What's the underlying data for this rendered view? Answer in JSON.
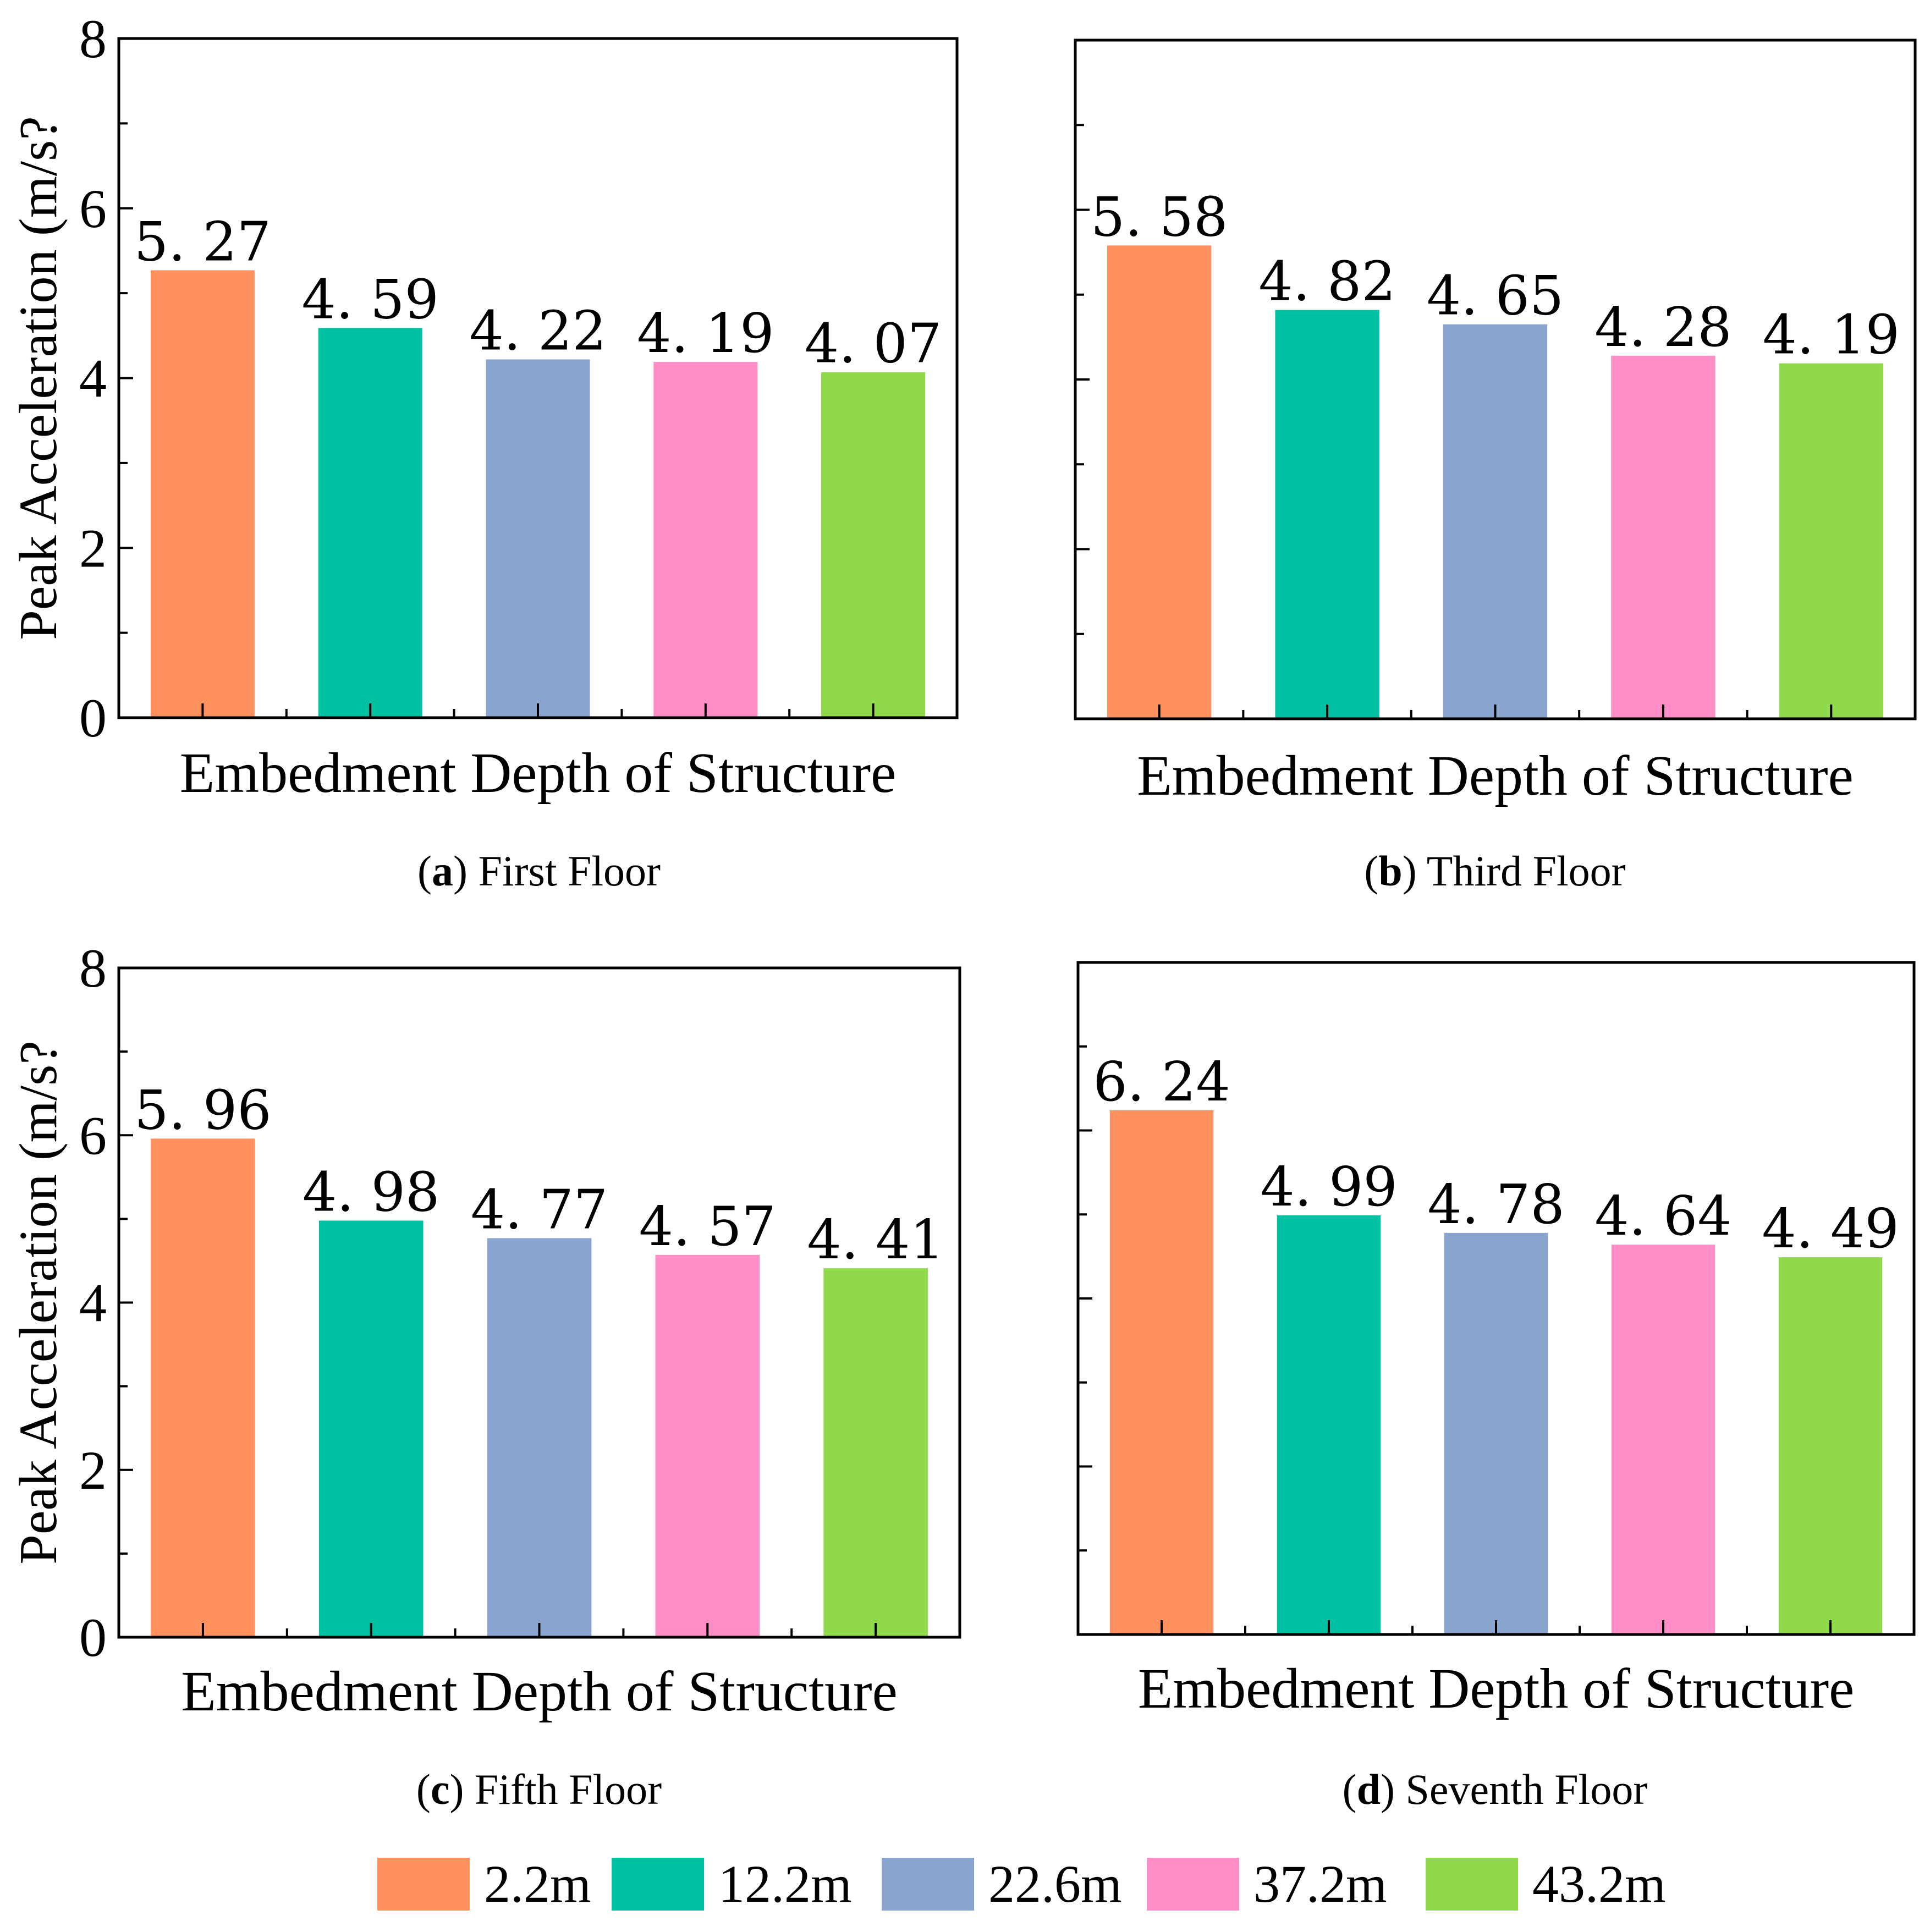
{
  "chart_data": [
    {
      "type": "bar",
      "panel_letter": "a",
      "caption_text": " First Floor",
      "categories": [
        "2.2m",
        "12.2m",
        "22.6m",
        "37.2m",
        "43.2m"
      ],
      "values": [
        5.27,
        4.59,
        4.22,
        4.19,
        4.07
      ],
      "labels": [
        "5. 27",
        "4. 59",
        "4. 22",
        "4. 19",
        "4. 07"
      ],
      "xlabel": "Embedment Depth of Structure",
      "ylabel": "Peak Acceleration (m/s?",
      "ylim": [
        0,
        8
      ],
      "yticks": [
        "0",
        "2",
        "4",
        "6",
        "8"
      ]
    },
    {
      "type": "bar",
      "panel_letter": "b",
      "caption_text": " Third Floor",
      "categories": [
        "2.2m",
        "12.2m",
        "22.6m",
        "37.2m",
        "43.2m"
      ],
      "values": [
        5.58,
        4.82,
        4.65,
        4.28,
        4.19
      ],
      "labels": [
        "5. 58",
        "4. 82",
        "4. 65",
        "4. 28",
        "4. 19"
      ],
      "xlabel": "Embedment Depth of Structure",
      "ylim": [
        0,
        8
      ]
    },
    {
      "type": "bar",
      "panel_letter": "c",
      "caption_text": " Fifth Floor",
      "categories": [
        "2.2m",
        "12.2m",
        "22.6m",
        "37.2m",
        "43.2m"
      ],
      "values": [
        5.96,
        4.98,
        4.77,
        4.57,
        4.41
      ],
      "labels": [
        "5. 96",
        "4. 98",
        "4. 77",
        "4. 57",
        "4. 41"
      ],
      "xlabel": "Embedment Depth of Structure",
      "ylabel": "Peak Acceleration (m/s?",
      "ylim": [
        0,
        8
      ],
      "yticks": [
        "0",
        "2",
        "4",
        "6",
        "8"
      ]
    },
    {
      "type": "bar",
      "panel_letter": "d",
      "caption_text": " Seventh Floor",
      "categories": [
        "2.2m",
        "12.2m",
        "22.6m",
        "37.2m",
        "43.2m"
      ],
      "values": [
        6.24,
        4.99,
        4.78,
        4.64,
        4.49
      ],
      "labels": [
        "6. 24",
        "4. 99",
        "4. 78",
        "4. 64",
        "4. 49"
      ],
      "xlabel": "Embedment Depth of Structure",
      "ylim": [
        0,
        8
      ]
    }
  ],
  "legend": [
    {
      "label": "2.2m",
      "color": "#ff915f"
    },
    {
      "label": "12.2m",
      "color": "#00c2a3"
    },
    {
      "label": "22.6m",
      "color": "#89a4cf"
    },
    {
      "label": "37.2m",
      "color": "#ff8dc6"
    },
    {
      "label": "43.2m",
      "color": "#8fd94a"
    }
  ]
}
